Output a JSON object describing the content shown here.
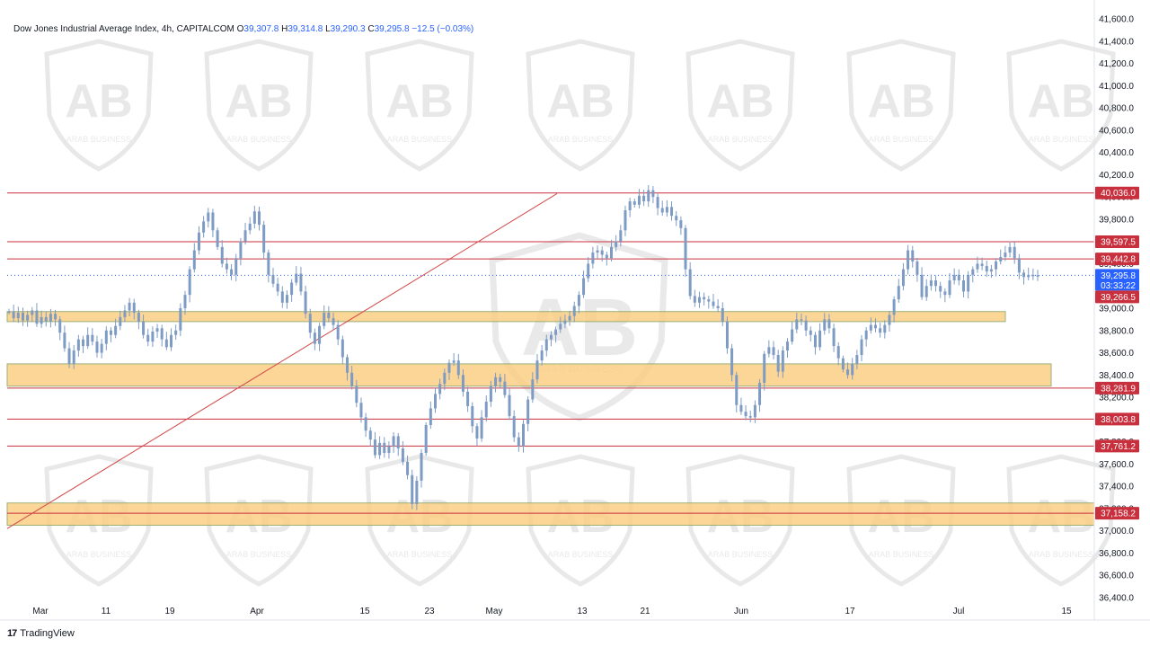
{
  "header": {
    "symbol": "Dow Jones Industrial Average Index, 4h, CAPITALCOM",
    "open_label": "O",
    "open": "39,307.8",
    "high_label": "H",
    "high": "39,314.8",
    "low_label": "L",
    "low": "39,290.3",
    "close_label": "C",
    "close": "39,295.8",
    "change": "−12.5 (−0.03%)"
  },
  "brand": {
    "logo_text": "17",
    "name": "TradingView"
  },
  "watermark": {
    "text": "ARAB BUSINESS"
  },
  "colors": {
    "candle": "#7e9bc4",
    "resistance": "#c9303e",
    "zone_fill": "#fbcf85",
    "zone_border": "#8aa460",
    "price_tag": "#2962ff",
    "trendline": "#d24a4a"
  },
  "chart_data": {
    "type": "candlestick",
    "timeframe": "4h",
    "ylim": [
      36400,
      41600
    ],
    "y_ticks": [
      "36,400.0",
      "36,600.0",
      "36,800.0",
      "37,000.0",
      "37,200.0",
      "37,400.0",
      "37,600.0",
      "37,800.0",
      "38,000.0",
      "38,200.0",
      "38,400.0",
      "38,600.0",
      "38,800.0",
      "39,000.0",
      "39,200.0",
      "39,400.0",
      "39,600.0",
      "39,800.0",
      "40,000.0",
      "40,200.0",
      "40,400.0",
      "40,600.0",
      "40,800.0",
      "41,000.0",
      "41,200.0",
      "41,400.0",
      "41,600.0"
    ],
    "x_ticks": [
      "Mar",
      "11",
      "19",
      "Apr",
      "15",
      "23",
      "May",
      "13",
      "21",
      "Jun",
      "17",
      "Jul",
      "15"
    ],
    "grid": false,
    "levels": [
      {
        "value": 40036.0,
        "label": "40,036.0"
      },
      {
        "value": 39597.5,
        "label": "39,597.5"
      },
      {
        "value": 39442.8,
        "label": "39,442.8"
      },
      {
        "value": 38281.9,
        "label": "38,281.9"
      },
      {
        "value": 38003.8,
        "label": "38,003.8"
      },
      {
        "value": 37761.2,
        "label": "37,761.2"
      },
      {
        "value": 37158.2,
        "label": "37,158.2"
      }
    ],
    "current_price": {
      "value": 39295.8,
      "label": "39,295.8",
      "countdown": "03:33:22"
    },
    "prev_close": {
      "value": 39266.5,
      "label": "39,266.5"
    },
    "zones": [
      {
        "from": 38880,
        "to": 38970,
        "start": "Mar",
        "end": "Jul"
      },
      {
        "from": 38300,
        "to": 38500,
        "start": "Mar",
        "end": "15"
      },
      {
        "from": 37050,
        "to": 37250,
        "start": "Mar",
        "end": "15"
      }
    ],
    "trendline": {
      "from": {
        "x": "Mar",
        "y": 37020
      },
      "to": {
        "x": "13",
        "y": 40030
      }
    },
    "closes": [
      38970,
      38910,
      38960,
      38890,
      38940,
      38980,
      38860,
      38920,
      38880,
      38950,
      38900,
      38780,
      38640,
      38500,
      38620,
      38720,
      38660,
      38760,
      38700,
      38600,
      38680,
      38800,
      38760,
      38840,
      38920,
      38980,
      39050,
      38960,
      38880,
      38760,
      38700,
      38790,
      38820,
      38720,
      38650,
      38760,
      38800,
      39000,
      39120,
      39350,
      39520,
      39680,
      39780,
      39860,
      39700,
      39550,
      39400,
      39350,
      39300,
      39450,
      39600,
      39700,
      39760,
      39870,
      39750,
      39500,
      39300,
      39220,
      39150,
      39050,
      39120,
      39230,
      39310,
      39150,
      38950,
      38780,
      38680,
      38840,
      38960,
      38910,
      38850,
      38720,
      38560,
      38420,
      38300,
      38150,
      38020,
      37900,
      37820,
      37680,
      37790,
      37700,
      37760,
      37850,
      37740,
      37620,
      37500,
      37240,
      37450,
      37700,
      37950,
      38100,
      38230,
      38320,
      38420,
      38510,
      38530,
      38400,
      38250,
      38120,
      37940,
      37830,
      38020,
      38160,
      38300,
      38380,
      38340,
      38220,
      38030,
      37840,
      37760,
      37960,
      38180,
      38360,
      38530,
      38620,
      38720,
      38760,
      38810,
      38860,
      38890,
      38930,
      39020,
      39120,
      39270,
      39400,
      39500,
      39520,
      39480,
      39450,
      39550,
      39600,
      39700,
      39880,
      39960,
      39930,
      40010,
      39960,
      40060,
      40000,
      39900,
      39860,
      39910,
      39830,
      39790,
      39720,
      39350,
      39110,
      39050,
      39100,
      39080,
      39060,
      39020,
      39000,
      38880,
      38640,
      38400,
      38130,
      38070,
      38030,
      38020,
      38130,
      38330,
      38590,
      38650,
      38580,
      38430,
      38620,
      38700,
      38810,
      38900,
      38890,
      38800,
      38760,
      38650,
      38800,
      38900,
      38820,
      38660,
      38550,
      38450,
      38400,
      38500,
      38580,
      38720,
      38800,
      38850,
      38820,
      38780,
      38850,
      38940,
      39080,
      39200,
      39350,
      39520,
      39420,
      39300,
      39100,
      39200,
      39250,
      39200,
      39150,
      39120,
      39250,
      39300,
      39250,
      39150,
      39300,
      39350,
      39400,
      39380,
      39330,
      39350,
      39420,
      39460,
      39500,
      39550,
      39450,
      39320,
      39280,
      39300,
      39290,
      39295.8
    ]
  }
}
